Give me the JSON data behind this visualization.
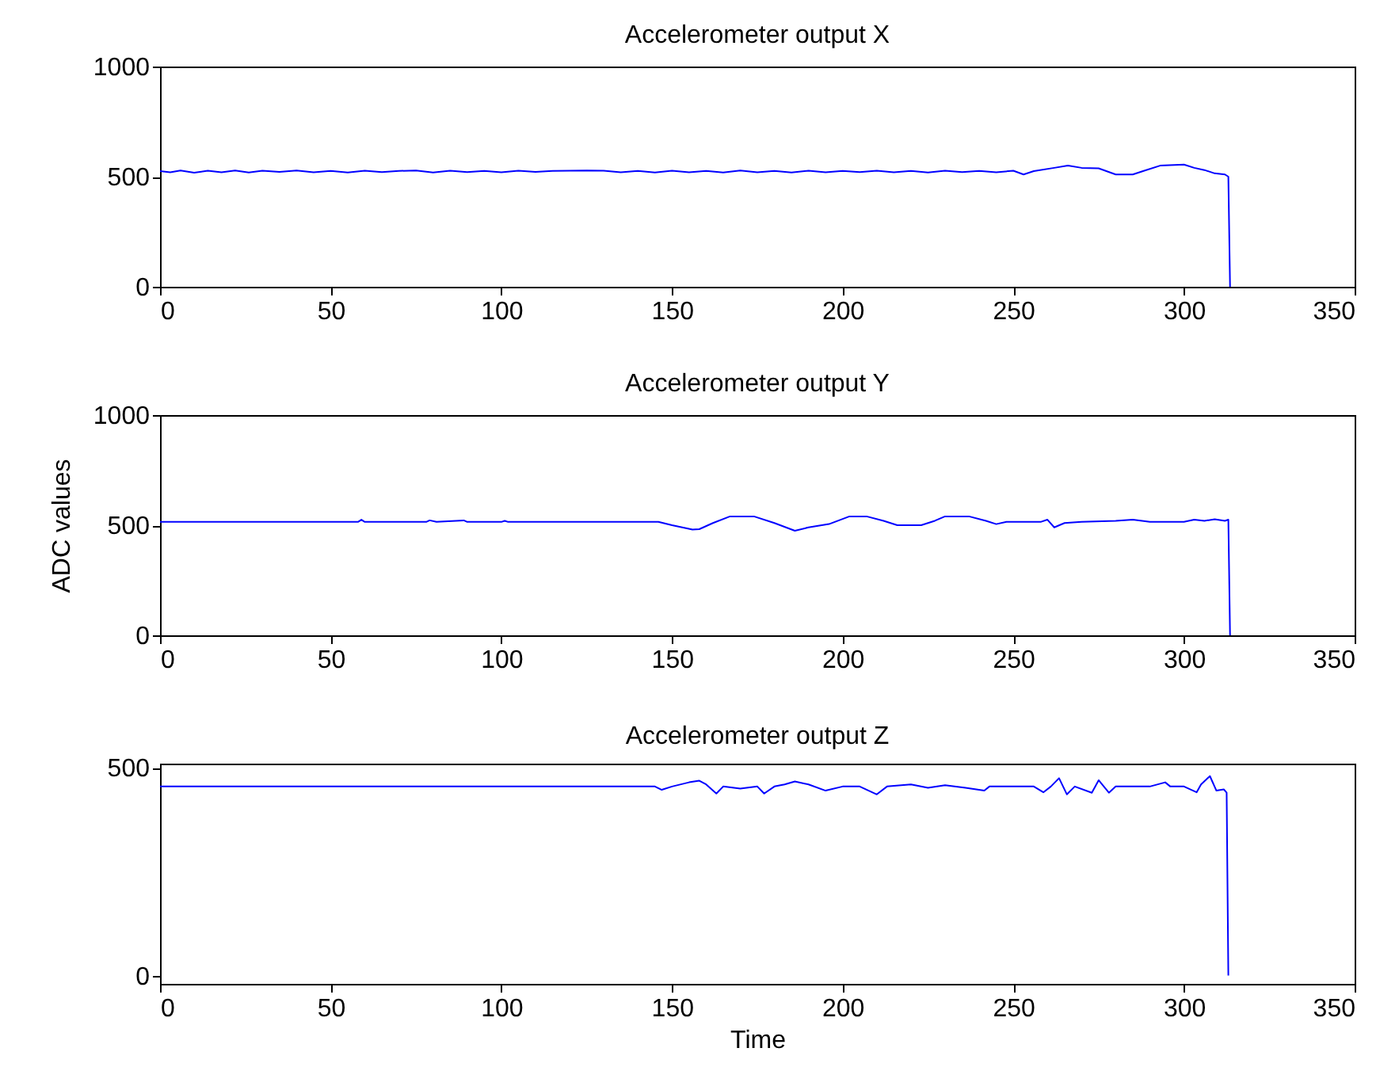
{
  "chart_data": [
    {
      "type": "line",
      "title": "Accelerometer output X",
      "xlim": [
        0,
        350
      ],
      "xticks": [
        0,
        50,
        100,
        150,
        200,
        250,
        300,
        350
      ],
      "ylim": [
        0,
        1000
      ],
      "yticks": [
        0,
        500,
        1000
      ],
      "grid": false,
      "series": [
        {
          "color": "#0000ff",
          "x": [
            0,
            3,
            6,
            10,
            14,
            18,
            22,
            26,
            30,
            35,
            40,
            45,
            50,
            55,
            60,
            65,
            70,
            75,
            80,
            85,
            90,
            95,
            100,
            105,
            110,
            115,
            120,
            125,
            130,
            135,
            140,
            145,
            150,
            155,
            160,
            165,
            170,
            175,
            180,
            185,
            190,
            195,
            200,
            205,
            210,
            215,
            220,
            225,
            230,
            235,
            240,
            245,
            250,
            253,
            256,
            262,
            266,
            270,
            275,
            280,
            285,
            288,
            293,
            300,
            303,
            306,
            309,
            312,
            313,
            313.5
          ],
          "values": [
            525,
            520,
            528,
            518,
            527,
            520,
            528,
            519,
            527,
            522,
            528,
            520,
            526,
            519,
            527,
            521,
            526,
            528,
            519,
            527,
            521,
            526,
            520,
            527,
            522,
            526,
            527,
            528,
            527,
            520,
            526,
            519,
            527,
            520,
            526,
            519,
            528,
            520,
            526,
            519,
            527,
            520,
            526,
            521,
            527,
            520,
            526,
            519,
            527,
            521,
            526,
            520,
            527,
            510,
            525,
            540,
            550,
            540,
            538,
            510,
            510,
            525,
            550,
            555,
            540,
            530,
            515,
            510,
            500,
            0
          ]
        }
      ]
    },
    {
      "type": "line",
      "title": "Accelerometer output Y",
      "ylabel": "ADC values",
      "xlim": [
        0,
        350
      ],
      "xticks": [
        0,
        50,
        100,
        150,
        200,
        250,
        300,
        350
      ],
      "ylim": [
        0,
        1000
      ],
      "yticks": [
        0,
        500,
        1000
      ],
      "grid": false,
      "series": [
        {
          "color": "#0000ff",
          "x": [
            0,
            58,
            59,
            60,
            78,
            79,
            81,
            89,
            90,
            100,
            101,
            102,
            146,
            150,
            156,
            158,
            162,
            167,
            174,
            180,
            186,
            190,
            196,
            202,
            207,
            212,
            216,
            223,
            227,
            230,
            237,
            242,
            245,
            248,
            258,
            260,
            262,
            265,
            270,
            280,
            285,
            290,
            300,
            303,
            306,
            309,
            312,
            313,
            313.5
          ],
          "values": [
            515,
            515,
            525,
            515,
            515,
            522,
            515,
            522,
            515,
            515,
            520,
            515,
            515,
            500,
            480,
            482,
            510,
            540,
            540,
            510,
            475,
            490,
            505,
            540,
            540,
            520,
            500,
            500,
            520,
            540,
            540,
            520,
            505,
            515,
            515,
            525,
            490,
            510,
            515,
            520,
            525,
            515,
            515,
            525,
            520,
            527,
            520,
            525,
            0
          ]
        }
      ]
    },
    {
      "type": "line",
      "title": "Accelerometer output Z",
      "xlabel": "Time",
      "xlim": [
        0,
        350
      ],
      "xticks": [
        0,
        50,
        100,
        150,
        200,
        250,
        300,
        350
      ],
      "ylim": [
        -20,
        510
      ],
      "yticks": [
        0,
        500
      ],
      "grid": false,
      "series": [
        {
          "color": "#0000ff",
          "x": [
            0,
            145,
            147,
            150,
            155,
            158,
            160,
            163,
            165,
            170,
            175,
            177,
            180,
            183,
            186,
            190,
            195,
            200,
            205,
            210,
            213,
            220,
            225,
            230,
            236,
            241.5,
            243,
            256,
            258.8,
            261,
            263.4,
            265.7,
            268,
            273,
            275,
            278,
            280,
            290,
            294.5,
            296,
            300,
            303.7,
            305,
            307.6,
            309.5,
            311.7,
            312.5,
            313
          ],
          "values": [
            455,
            455,
            447,
            455,
            465,
            469,
            460,
            438,
            455,
            450,
            455,
            438,
            455,
            460,
            467,
            460,
            445,
            455,
            455,
            436,
            455,
            460,
            452,
            458,
            452,
            445,
            455,
            455,
            441,
            455,
            475,
            436,
            455,
            440,
            470,
            440,
            455,
            455,
            465,
            455,
            455,
            441,
            460,
            480,
            445,
            448,
            440,
            0
          ]
        }
      ]
    }
  ]
}
